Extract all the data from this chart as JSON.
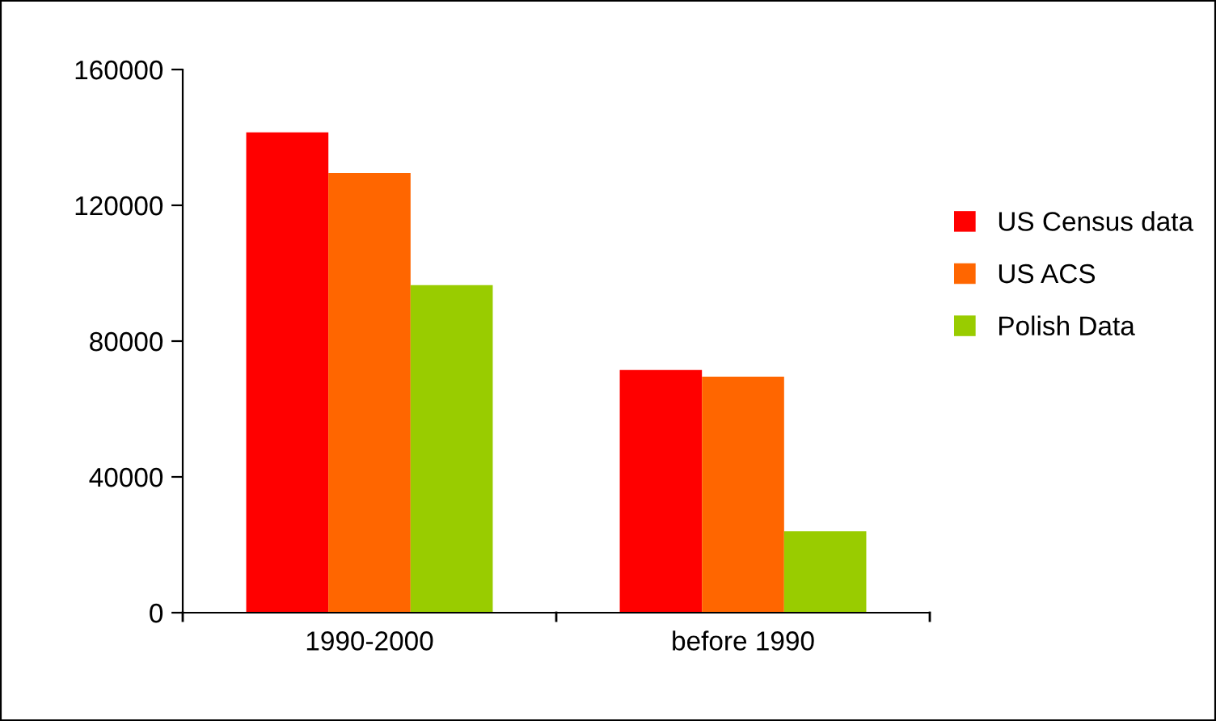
{
  "chart_data": {
    "type": "bar",
    "categories": [
      "1990-2000",
      "before 1990"
    ],
    "series": [
      {
        "name": "US Census data",
        "color": "#ff0000",
        "values": [
          141500,
          71500
        ]
      },
      {
        "name": "US ACS",
        "color": "#ff6600",
        "values": [
          129500,
          69500
        ]
      },
      {
        "name": "Polish Data",
        "color": "#99cc00",
        "values": [
          96500,
          24000
        ]
      }
    ],
    "ylim": [
      0,
      160000
    ],
    "yticks": [
      0,
      40000,
      80000,
      120000,
      160000
    ],
    "grid": false,
    "legend": "right"
  }
}
